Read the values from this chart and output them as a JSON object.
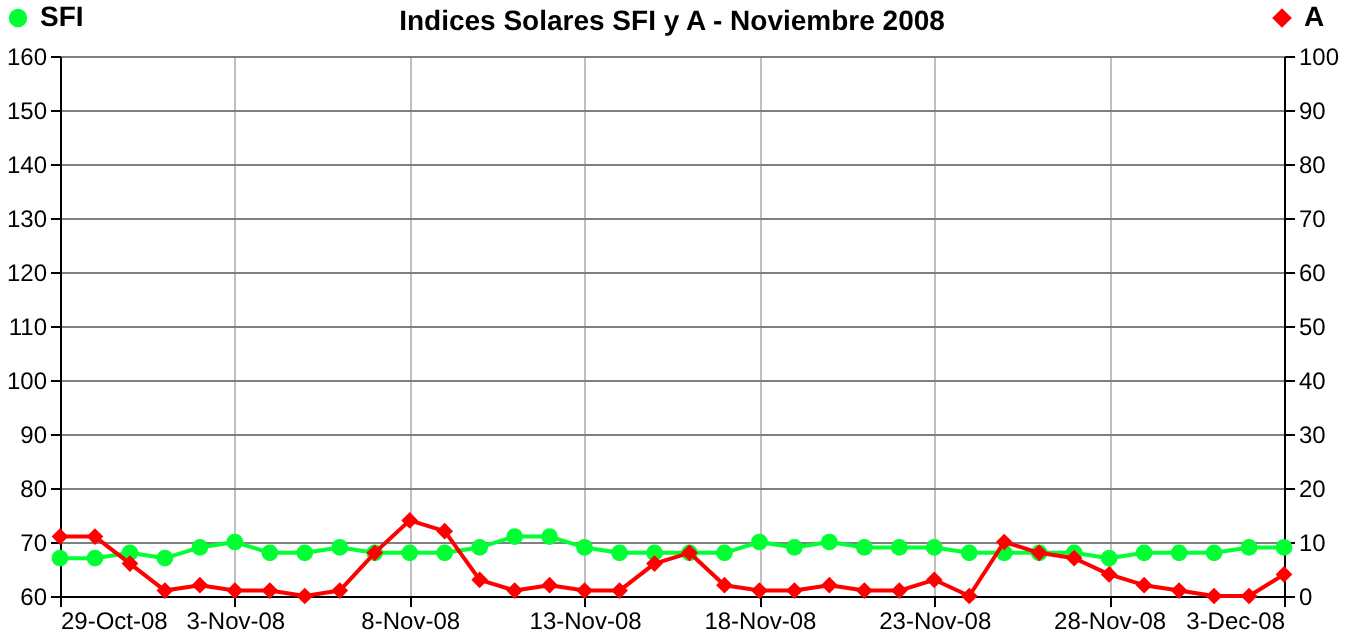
{
  "chart_data": {
    "type": "line",
    "title": "Indices Solares SFI y A - Noviembre 2008",
    "x": [
      "2008-10-29",
      "2008-10-30",
      "2008-10-31",
      "2008-11-01",
      "2008-11-02",
      "2008-11-03",
      "2008-11-04",
      "2008-11-05",
      "2008-11-06",
      "2008-11-07",
      "2008-11-08",
      "2008-11-09",
      "2008-11-10",
      "2008-11-11",
      "2008-11-12",
      "2008-11-13",
      "2008-11-14",
      "2008-11-15",
      "2008-11-16",
      "2008-11-17",
      "2008-11-18",
      "2008-11-19",
      "2008-11-20",
      "2008-11-21",
      "2008-11-22",
      "2008-11-23",
      "2008-11-24",
      "2008-11-25",
      "2008-11-26",
      "2008-11-27",
      "2008-11-28",
      "2008-11-29",
      "2008-11-30",
      "2008-12-01",
      "2008-12-02",
      "2008-12-03"
    ],
    "series": [
      {
        "name": "SFI",
        "color": "#00ff33",
        "marker": "circle",
        "values": [
          67,
          67,
          68,
          67,
          69,
          70,
          68,
          68,
          69,
          68,
          68,
          68,
          69,
          71,
          71,
          69,
          68,
          68,
          68,
          68,
          70,
          69,
          70,
          69,
          69,
          69,
          68,
          68,
          68,
          68,
          67,
          68,
          68,
          68,
          69,
          69
        ]
      },
      {
        "name": "A",
        "color": "#ff0000",
        "marker": "diamond",
        "axis": "y2",
        "values": [
          11,
          11,
          6,
          1,
          2,
          1,
          1,
          0,
          1,
          8,
          14,
          12,
          3,
          1,
          2,
          1,
          1,
          6,
          8,
          2,
          1,
          1,
          2,
          1,
          1,
          3,
          0,
          10,
          8,
          7,
          4,
          2,
          1,
          0,
          0,
          4
        ]
      }
    ],
    "xlim": [
      "2008-10-29",
      "2008-12-03"
    ],
    "xticks": [
      {
        "value": "2008-10-29",
        "label": "29-Oct-08"
      },
      {
        "value": "2008-11-03",
        "label": "3-Nov-08"
      },
      {
        "value": "2008-11-08",
        "label": "8-Nov-08"
      },
      {
        "value": "2008-11-13",
        "label": "13-Nov-08"
      },
      {
        "value": "2008-11-18",
        "label": "18-Nov-08"
      },
      {
        "value": "2008-11-23",
        "label": "23-Nov-08"
      },
      {
        "value": "2008-11-28",
        "label": "28-Nov-08"
      },
      {
        "value": "2008-12-03",
        "label": "3-Dec-08"
      }
    ],
    "ylim": [
      60,
      160
    ],
    "yticks": [
      60,
      70,
      80,
      90,
      100,
      110,
      120,
      130,
      140,
      150,
      160
    ],
    "y2lim": [
      0,
      100
    ],
    "y2ticks": [
      0,
      10,
      20,
      30,
      40,
      50,
      60,
      70,
      80,
      90,
      100
    ],
    "grid": true,
    "legend": "top",
    "line_style": "solid"
  }
}
